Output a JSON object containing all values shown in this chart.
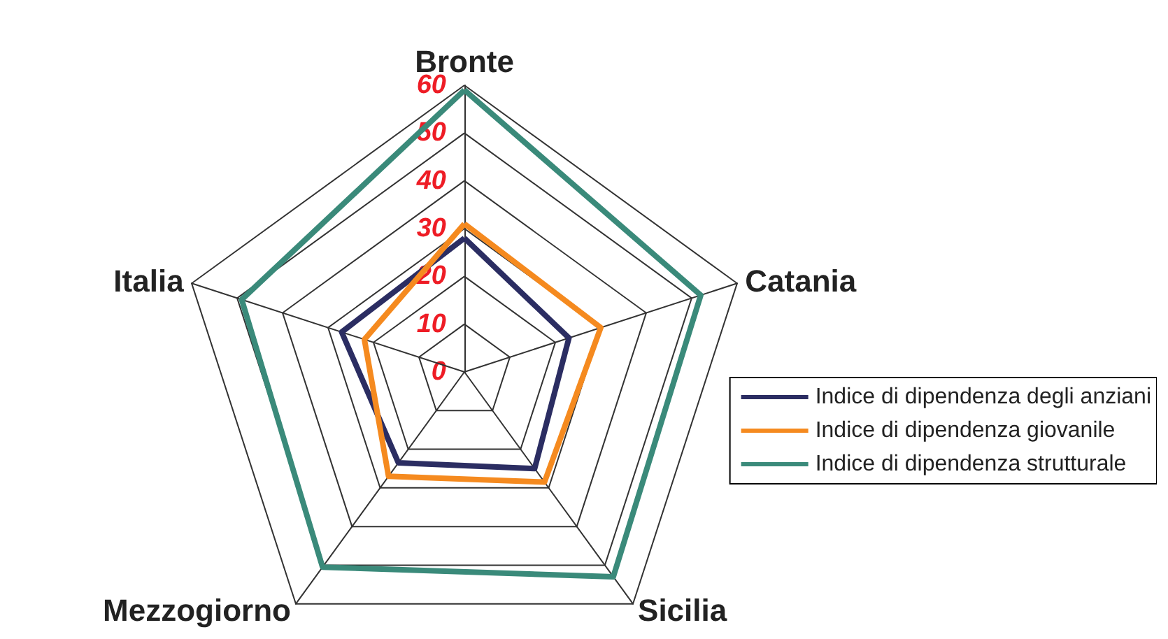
{
  "chart_data": {
    "type": "radar",
    "categories": [
      "Bronte",
      "Catania",
      "Sicilia",
      "Mezzogiorno",
      "Italia"
    ],
    "series": [
      {
        "name": "Indice di dipendenza degli anziani",
        "color": "#2b2d62",
        "values": [
          28,
          23,
          25,
          23.5,
          27
        ]
      },
      {
        "name": "Indice di dipendenza giovanile",
        "color": "#f58a1f",
        "values": [
          31,
          30,
          28.5,
          27,
          22
        ]
      },
      {
        "name": "Indice di dipendenza strutturale",
        "color": "#3a8a7a",
        "values": [
          59,
          52,
          53,
          50.5,
          49
        ]
      }
    ],
    "ylim": [
      0,
      60
    ],
    "yticks": [
      0,
      10,
      20,
      30,
      40,
      50,
      60
    ],
    "legend": "right",
    "grid": true
  }
}
